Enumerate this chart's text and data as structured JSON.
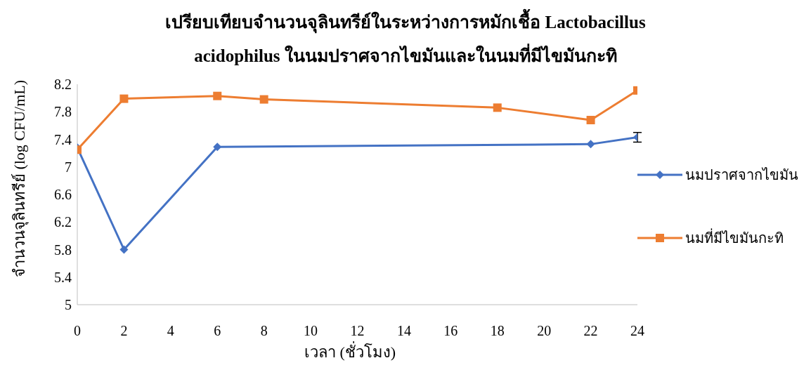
{
  "chart_data": {
    "type": "line",
    "title": "เปรียบเทียบจำนวนจุลินทรีย์ในระหว่างการหมักเชื้อ Lactobacillus acidophilus ในนมปราศจากไขมันและในนมที่มีไขมันกะทิ",
    "xlabel": "เวลา (ชั่วโมง)",
    "ylabel": "จำนวนจุลินทรีย์ (log CFU/mL)",
    "xlim": [
      0,
      24
    ],
    "xticks": [
      0,
      2,
      4,
      6,
      8,
      10,
      12,
      14,
      16,
      18,
      20,
      22,
      24
    ],
    "ylim": [
      5,
      8.2
    ],
    "yticks": [
      5,
      5.4,
      5.8,
      6.2,
      6.6,
      7,
      7.4,
      7.8,
      8.2
    ],
    "grid": false,
    "legend": "right",
    "series": [
      {
        "name": "นมปราศจากไขมัน",
        "color": "#4472c4",
        "marker": "diamond",
        "x": [
          0,
          2,
          6,
          22,
          24
        ],
        "values": [
          7.28,
          5.8,
          7.29,
          7.33,
          7.43
        ],
        "errors": [
          null,
          null,
          null,
          null,
          0.07
        ]
      },
      {
        "name": "นมที่มีไขมันกะทิ",
        "color": "#ed7d31",
        "marker": "square",
        "x": [
          0,
          2,
          6,
          8,
          18,
          22,
          24
        ],
        "values": [
          7.25,
          7.99,
          8.03,
          7.98,
          7.86,
          7.68,
          8.11
        ]
      }
    ]
  }
}
